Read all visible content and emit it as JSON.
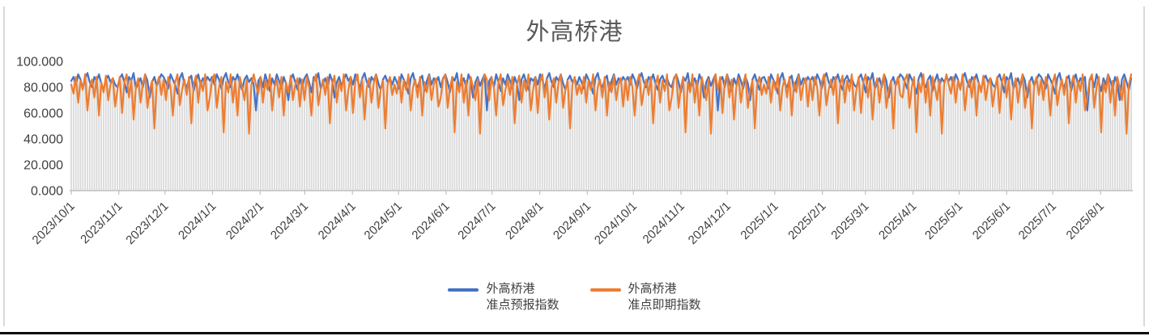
{
  "page": {
    "frame_border_color": "#D9D9D9",
    "bottom_bar_color": "#0d0d0d"
  },
  "chart_data": {
    "type": "line+bar",
    "title": "外高桥港",
    "title_color": "#595959",
    "legend_position": "bottom",
    "grid": "off",
    "ylim": [
      0,
      100
    ],
    "y_tick_values": [
      0,
      20,
      40,
      60,
      80,
      100
    ],
    "y_tick_labels": [
      "0.000",
      "20.000",
      "40.000",
      "60.000",
      "80.000",
      "100.000"
    ],
    "x_tick_labels": [
      "2023/10/1",
      "2023/11/1",
      "2023/12/1",
      "2024/1/1",
      "2024/2/1",
      "2024/3/1",
      "2024/4/1",
      "2024/5/1",
      "2024/6/1",
      "2024/7/1",
      "2024/8/1",
      "2024/9/1",
      "2024/10/1",
      "2024/11/1",
      "2024/12/1",
      "2025/1/1",
      "2025/2/1",
      "2025/3/1",
      "2025/4/1",
      "2025/5/1",
      "2025/6/1",
      "2025/7/1",
      "2025/8/1"
    ],
    "x_tick_day_offsets": [
      0,
      31,
      61,
      92,
      123,
      152,
      183,
      213,
      244,
      274,
      305,
      336,
      366,
      397,
      427,
      458,
      489,
      517,
      548,
      578,
      609,
      639,
      670
    ],
    "total_days": 690,
    "axis_text_color": "#404040",
    "axis_line_color": "#BFBFBF",
    "background_bars_color": "#D9D9D9",
    "background_bars_note": "light gray daily bars filling from 0 up to the line envelope",
    "series": [
      {
        "name": "外高桥港准点预报指数",
        "legend_lines": [
          "外高桥港",
          "准点预报指数"
        ],
        "color": "#4472C4",
        "values": [
          85,
          88,
          82,
          90,
          86,
          79,
          87,
          91,
          84,
          80,
          88,
          85,
          90,
          83,
          78,
          86,
          89,
          84,
          87,
          82,
          80,
          87,
          90,
          84,
          76,
          88,
          85,
          91,
          79,
          83,
          87,
          80,
          90,
          85,
          72,
          84,
          88,
          81,
          86,
          90,
          88,
          84,
          79,
          90,
          86,
          82,
          75,
          87,
          91,
          83,
          80,
          86,
          89,
          77,
          85,
          90,
          82,
          87,
          84,
          88,
          85,
          88,
          82,
          90,
          86,
          79,
          87,
          91,
          84,
          80,
          88,
          85,
          90,
          83,
          78,
          86,
          89,
          84,
          87,
          82,
          62,
          85,
          88,
          80,
          90,
          84,
          77,
          87,
          82,
          90,
          85,
          79,
          88,
          83,
          70,
          86,
          90,
          84,
          78,
          87,
          80,
          87,
          90,
          84,
          76,
          88,
          85,
          91,
          79,
          83,
          87,
          80,
          90,
          85,
          72,
          84,
          88,
          81,
          86,
          90,
          85,
          88,
          82,
          90,
          86,
          79,
          87,
          91,
          84,
          80,
          88,
          85,
          90,
          83,
          78,
          86,
          89,
          84,
          87,
          82,
          88,
          84,
          79,
          90,
          86,
          82,
          75,
          87,
          91,
          83,
          80,
          86,
          89,
          77,
          85,
          90,
          82,
          87,
          84,
          88,
          80,
          87,
          90,
          84,
          76,
          88,
          85,
          91,
          79,
          83,
          87,
          80,
          90,
          85,
          72,
          84,
          88,
          81,
          86,
          90,
          62,
          85,
          88,
          80,
          90,
          84,
          77,
          87,
          82,
          90,
          85,
          79,
          88,
          83,
          70,
          86,
          90,
          84,
          78,
          87,
          85,
          88,
          82,
          90,
          86,
          79,
          87,
          91,
          84,
          80,
          88,
          85,
          90,
          83,
          78,
          86,
          89,
          84,
          87,
          82,
          88,
          84,
          79,
          90,
          86,
          82,
          75,
          87,
          91,
          83,
          80,
          86,
          89,
          77,
          85,
          90,
          82,
          87,
          84,
          88,
          85,
          88,
          82,
          90,
          86,
          79,
          87,
          91,
          84,
          80,
          88,
          85,
          90,
          83,
          78,
          86,
          89,
          84,
          87,
          82,
          80,
          87,
          90,
          84,
          76,
          88,
          85,
          91,
          79,
          83,
          87,
          80,
          90,
          85,
          72,
          84,
          88,
          81,
          86,
          90,
          62,
          85,
          88,
          80,
          90,
          84,
          77,
          87,
          82,
          90,
          85,
          79,
          88,
          83,
          70,
          86,
          90,
          84,
          78,
          87,
          88,
          84,
          79,
          90,
          86,
          82,
          75,
          87,
          91,
          83,
          80,
          86,
          89,
          77,
          85,
          90,
          82,
          87,
          84,
          88,
          85,
          88,
          82,
          90,
          86,
          79,
          87,
          91,
          84,
          80,
          88,
          85,
          90,
          83,
          78,
          86,
          89,
          84,
          87,
          82,
          80,
          87,
          90,
          84,
          76,
          88,
          85,
          91,
          79,
          83,
          87,
          80,
          90,
          85,
          72,
          84,
          88,
          81,
          86,
          90,
          88,
          84,
          79,
          90,
          86,
          82,
          75,
          87,
          91,
          83,
          80,
          86,
          89,
          77,
          85,
          90,
          82,
          87,
          84,
          88,
          85,
          88,
          82,
          90,
          86,
          79,
          87,
          91,
          84,
          80,
          88,
          85,
          90,
          83,
          78,
          86,
          89,
          84,
          87,
          82,
          80,
          87,
          90,
          84,
          76,
          88,
          85,
          91,
          79,
          83,
          87,
          80,
          90,
          85,
          72,
          84,
          88,
          81,
          86,
          90,
          88,
          84,
          79,
          90,
          86,
          82,
          75,
          87,
          91,
          83,
          80,
          86,
          89,
          77,
          85,
          90,
          82,
          87,
          84,
          88,
          62,
          85,
          88,
          80,
          90,
          84,
          77,
          87,
          82,
          90,
          85,
          79,
          88,
          83,
          70,
          86,
          90,
          84,
          78,
          87
        ]
      },
      {
        "name": "外高桥港准点即期指数",
        "legend_lines": [
          "外高桥港",
          "准点即期指数"
        ],
        "color": "#ED7D31",
        "values": [
          82,
          75,
          88,
          68,
          85,
          78,
          90,
          62,
          80,
          86,
          72,
          88,
          58,
          84,
          76,
          89,
          70,
          82,
          87,
          65,
          78,
          88,
          60,
          84,
          90,
          72,
          86,
          55,
          80,
          87,
          68,
          83,
          90,
          64,
          78,
          85,
          48,
          82,
          88,
          74,
          86,
          70,
          88,
          80,
          58,
          84,
          90,
          66,
          78,
          86,
          74,
          88,
          52,
          82,
          89,
          68,
          85,
          77,
          90,
          62,
          72,
          86,
          90,
          64,
          80,
          88,
          45,
          84,
          76,
          90,
          68,
          85,
          58,
          88,
          80,
          70,
          86,
          44,
          82,
          90,
          82,
          75,
          88,
          68,
          85,
          78,
          90,
          62,
          80,
          86,
          72,
          88,
          58,
          84,
          76,
          89,
          70,
          82,
          87,
          65,
          86,
          70,
          88,
          80,
          58,
          84,
          90,
          66,
          78,
          86,
          74,
          88,
          52,
          82,
          89,
          68,
          85,
          77,
          90,
          62,
          78,
          88,
          60,
          84,
          90,
          72,
          86,
          55,
          80,
          87,
          68,
          83,
          90,
          64,
          78,
          85,
          48,
          82,
          88,
          74,
          82,
          75,
          88,
          68,
          85,
          78,
          90,
          62,
          80,
          86,
          72,
          88,
          58,
          84,
          76,
          89,
          70,
          82,
          87,
          65,
          72,
          86,
          90,
          64,
          80,
          88,
          45,
          84,
          76,
          90,
          68,
          85,
          58,
          88,
          80,
          70,
          86,
          44,
          82,
          90,
          86,
          70,
          88,
          80,
          58,
          84,
          90,
          66,
          78,
          86,
          74,
          88,
          52,
          82,
          89,
          68,
          85,
          77,
          90,
          62,
          78,
          88,
          60,
          84,
          90,
          72,
          86,
          55,
          80,
          87,
          68,
          83,
          90,
          64,
          78,
          85,
          48,
          82,
          88,
          74,
          82,
          75,
          88,
          68,
          85,
          78,
          90,
          62,
          80,
          86,
          72,
          88,
          58,
          84,
          76,
          89,
          70,
          82,
          87,
          65,
          86,
          70,
          88,
          80,
          58,
          84,
          90,
          66,
          78,
          86,
          74,
          88,
          52,
          82,
          89,
          68,
          85,
          77,
          90,
          62,
          72,
          86,
          90,
          64,
          80,
          88,
          45,
          84,
          76,
          90,
          68,
          85,
          58,
          88,
          80,
          70,
          86,
          44,
          82,
          90,
          78,
          88,
          60,
          84,
          90,
          72,
          86,
          55,
          80,
          87,
          68,
          83,
          90,
          64,
          78,
          85,
          48,
          82,
          88,
          74,
          82,
          75,
          88,
          68,
          85,
          78,
          90,
          62,
          80,
          86,
          72,
          88,
          58,
          84,
          76,
          89,
          70,
          82,
          87,
          65,
          86,
          70,
          88,
          80,
          58,
          84,
          90,
          66,
          78,
          86,
          74,
          88,
          52,
          82,
          89,
          68,
          85,
          77,
          90,
          62,
          78,
          88,
          60,
          84,
          90,
          72,
          86,
          55,
          80,
          87,
          68,
          83,
          90,
          64,
          78,
          85,
          48,
          82,
          88,
          74,
          72,
          86,
          90,
          64,
          80,
          88,
          45,
          84,
          76,
          90,
          68,
          85,
          58,
          88,
          80,
          70,
          86,
          44,
          82,
          90,
          82,
          75,
          88,
          68,
          85,
          78,
          90,
          62,
          80,
          86,
          72,
          88,
          58,
          84,
          76,
          89,
          70,
          82,
          87,
          65,
          78,
          88,
          60,
          84,
          90,
          72,
          86,
          55,
          80,
          87,
          68,
          83,
          90,
          64,
          78,
          85,
          48,
          82,
          88,
          74,
          86,
          70,
          88,
          80,
          58,
          84,
          90,
          66,
          78,
          86,
          74,
          88,
          52,
          82,
          89,
          68,
          85,
          77,
          90,
          62,
          72,
          86,
          90,
          64,
          80,
          88,
          45,
          84,
          76,
          90,
          68,
          85,
          58,
          88,
          80,
          70,
          86,
          44,
          82,
          90
        ]
      }
    ]
  }
}
